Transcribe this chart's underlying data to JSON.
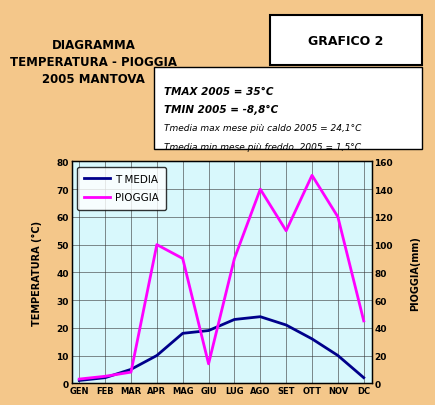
{
  "title_left": "DIAGRAMMA\nTEMPERATURA - PIOGGIA\n2005 MANTOVA",
  "title_right": "GRAFICO 2",
  "info_box": [
    "TMAX 2005 = 35°C",
    "TMIN 2005 = -8,8°C",
    "Tmedia max mese più caldo 2005 = 24,1°C",
    "Tmedia min mese più freddo  2005 = 1,5°C"
  ],
  "months": [
    "GEN",
    "FEB",
    "MAR",
    "APR",
    "MAG",
    "GIU",
    "LUG",
    "AGO",
    "SET",
    "OTT",
    "NOV",
    "DC"
  ],
  "t_media": [
    1,
    2,
    5,
    10,
    18,
    19,
    23,
    24,
    21,
    16,
    10,
    2
  ],
  "pioggia": [
    3,
    5,
    8,
    100,
    90,
    14,
    90,
    140,
    110,
    150,
    120,
    45
  ],
  "t_color": "#00008B",
  "p_color": "#FF00FF",
  "bg_color": "#F4C78A",
  "plot_bg": "#D8F8FC",
  "ylabel_left": "TEMPERATURA (°C)",
  "ylabel_right": "PIOGGIA(mm)",
  "ylim_left": [
    0,
    80
  ],
  "ylim_right": [
    0,
    160
  ],
  "yticks_left": [
    0,
    10,
    20,
    30,
    40,
    50,
    60,
    70,
    80
  ],
  "yticks_right": [
    0,
    20,
    40,
    60,
    80,
    100,
    120,
    140,
    160
  ],
  "legend_labels": [
    "T MEDIA",
    "PIOGGIA"
  ]
}
